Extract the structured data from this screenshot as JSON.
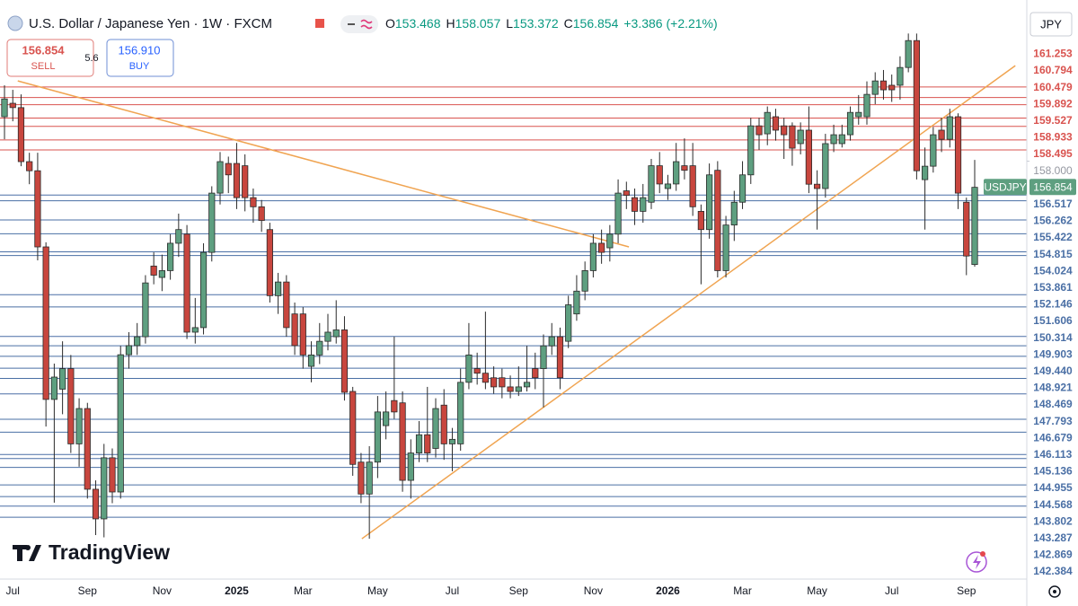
{
  "chart_data": {
    "type": "candlestick",
    "title": "U.S. Dollar / Japanese Yen · 1W · FXCM",
    "symbol": "USDJPY",
    "currency": "JPY",
    "watermark": "TradingView",
    "ohlc_prefixes": [
      "O",
      "H",
      "L",
      "C"
    ],
    "change": "+3.386 (+2.21%)",
    "trade": {
      "sell_label": "SELL",
      "buy_label": "BUY",
      "spread": "5.6",
      "buy_price": "156.910"
    },
    "up_color": "#5e9f80",
    "down_color": "#c8463e",
    "border_color": "#2a2a2a",
    "ylim": [
      139.67,
      165.07
    ],
    "yticks": [
      {
        "value": 158,
        "label": "158.000"
      }
    ],
    "categories": [
      null,
      "Jul",
      null,
      null,
      null,
      null,
      null,
      null,
      null,
      null,
      "Sep",
      null,
      null,
      null,
      null,
      null,
      null,
      null,
      null,
      "Nov",
      null,
      null,
      null,
      null,
      null,
      null,
      null,
      null,
      "2025",
      null,
      null,
      null,
      null,
      null,
      null,
      null,
      "Mar",
      null,
      null,
      null,
      null,
      null,
      null,
      null,
      null,
      "May",
      null,
      null,
      null,
      null,
      null,
      null,
      null,
      null,
      "Jul",
      null,
      null,
      null,
      null,
      null,
      null,
      null,
      "Sep",
      null,
      null,
      null,
      null,
      null,
      null,
      null,
      null,
      "Nov",
      null,
      null,
      null,
      null,
      null,
      null,
      null,
      null,
      "2026",
      null,
      null,
      null,
      null,
      null,
      null,
      null,
      null,
      "Mar",
      null,
      null,
      null,
      null,
      null,
      null,
      null,
      null,
      "May",
      null,
      null,
      null,
      null,
      null,
      null,
      null,
      null,
      "Jul",
      null,
      null,
      null,
      null,
      null,
      null,
      null,
      null,
      "Sep",
      null
    ],
    "open": [
      159.95,
      160.54,
      160.35,
      157.98,
      157.58,
      154.24,
      147.55,
      148.0,
      148.9,
      145.6,
      147.15,
      143.61,
      142.31,
      144.99,
      143.49,
      149.51,
      149.91,
      150.3,
      153.4,
      152.9,
      153.2,
      154.4,
      154.8,
      150.5,
      150.7,
      154.0,
      156.6,
      157.9,
      157.9,
      157.8,
      156.4,
      156.0,
      155.0,
      152.1,
      152.7,
      151.3,
      151.3,
      149.0,
      149.5,
      150.1,
      150.3,
      150.6,
      147.9,
      144.8,
      143.4,
      144.8,
      146.4,
      147.5,
      147.4,
      144.0,
      145.2,
      146.0,
      145.4,
      147.3,
      145.6,
      145.6,
      148.3,
      148.9,
      148.7,
      148.5,
      148.5,
      148.1,
      147.9,
      148.1,
      148.9,
      148.9,
      149.9,
      150.3,
      150.1,
      151.3,
      152.3,
      153.2,
      154.4,
      154.2,
      154.8,
      156.7,
      156.4,
      155.8,
      156.2,
      157.8,
      156.8,
      157.0,
      157.8,
      157.8,
      155.8,
      155.0,
      157.6,
      153.2,
      155.2,
      156.2,
      157.4,
      159.55,
      159.2,
      159.95,
      159.55,
      159.55,
      158.77,
      159.36,
      156.99,
      156.8,
      158.77,
      158.77,
      159.16,
      159.95,
      159.95,
      160.93,
      161.52,
      161.33,
      161.33,
      162.11,
      163.29,
      157.19,
      157.78,
      159.36,
      158.96,
      159.95,
      156.2,
      153.468
    ],
    "high": [
      161.33,
      161.13,
      160.93,
      158.37,
      158.37,
      154.44,
      149.12,
      150.1,
      149.5,
      147.6,
      147.4,
      144.0,
      145.6,
      145.4,
      149.9,
      150.5,
      150.9,
      153.0,
      154.0,
      153.9,
      154.8,
      155.7,
      155.2,
      152.0,
      154.4,
      156.9,
      158.4,
      158.2,
      158.8,
      158.3,
      156.8,
      156.3,
      155.3,
      153.1,
      153.0,
      151.8,
      151.6,
      150.1,
      150.9,
      151.3,
      151.9,
      151.2,
      148.1,
      145.2,
      145.5,
      147.7,
      147.9,
      150.3,
      147.9,
      145.8,
      146.6,
      148.1,
      147.6,
      148.0,
      146.3,
      148.9,
      150.9,
      149.6,
      151.4,
      149.0,
      148.9,
      148.6,
      149.0,
      149.9,
      149.6,
      150.4,
      150.9,
      150.7,
      152.1,
      153.0,
      153.6,
      154.8,
      155.0,
      155.2,
      157.2,
      157.1,
      156.8,
      157.0,
      158.1,
      158.4,
      157.4,
      158.8,
      159.0,
      158.8,
      156.1,
      157.9,
      158.0,
      155.6,
      156.7,
      158.0,
      159.9,
      159.9,
      160.4,
      160.3,
      159.9,
      159.7,
      159.7,
      160.4,
      157.6,
      159.2,
      159.6,
      159.6,
      160.4,
      160.9,
      161.5,
      161.9,
      162.0,
      161.8,
      162.6,
      163.6,
      163.6,
      158.6,
      159.5,
      159.9,
      160.3,
      160.1,
      156.4,
      158.057
    ],
    "low": [
      158.96,
      159.75,
      157.78,
      156.99,
      153.65,
      146.36,
      143.02,
      146.9,
      145.2,
      144.6,
      143.2,
      141.6,
      141.5,
      143.0,
      143.2,
      148.9,
      149.5,
      150.0,
      152.6,
      152.3,
      152.8,
      153.8,
      150.2,
      150.0,
      150.4,
      153.6,
      156.1,
      156.6,
      155.9,
      155.8,
      155.3,
      154.9,
      151.8,
      151.3,
      150.3,
      149.5,
      148.9,
      148.3,
      149.1,
      149.7,
      150.0,
      147.5,
      144.2,
      143.0,
      141.44,
      144.1,
      145.8,
      146.7,
      143.5,
      143.2,
      144.8,
      144.8,
      145.0,
      144.9,
      144.4,
      145.3,
      148.0,
      148.2,
      148.0,
      147.8,
      147.6,
      147.6,
      147.7,
      147.9,
      148.0,
      147.2,
      149.5,
      148.0,
      149.8,
      151.0,
      151.9,
      152.9,
      153.5,
      153.6,
      154.4,
      155.9,
      155.2,
      155.3,
      155.9,
      156.6,
      156.3,
      156.7,
      157.2,
      155.6,
      152.6,
      154.6,
      152.9,
      152.9,
      154.5,
      155.9,
      157.0,
      158.5,
      158.7,
      158.9,
      158.1,
      157.8,
      158.3,
      156.6,
      155.0,
      156.4,
      158.4,
      158.6,
      158.9,
      159.6,
      159.6,
      160.5,
      160.7,
      160.6,
      160.7,
      161.9,
      157.2,
      155.0,
      157.5,
      158.4,
      158.6,
      155.9,
      153.0,
      153.372
    ],
    "close": [
      160.73,
      160.35,
      157.98,
      157.58,
      154.24,
      147.55,
      148.53,
      148.9,
      145.6,
      147.15,
      143.61,
      142.31,
      144.99,
      143.49,
      149.51,
      149.91,
      150.3,
      152.66,
      153.0,
      153.2,
      154.4,
      155.0,
      150.5,
      150.7,
      154.0,
      156.6,
      157.98,
      157.4,
      156.4,
      156.4,
      156.0,
      155.4,
      152.1,
      152.7,
      150.7,
      149.91,
      149.5,
      149.5,
      150.1,
      150.5,
      150.6,
      147.86,
      144.7,
      143.4,
      144.8,
      147.0,
      147.0,
      147.0,
      144.0,
      145.2,
      146.0,
      145.2,
      147.15,
      145.6,
      145.8,
      148.3,
      149.5,
      148.7,
      148.3,
      148.1,
      148.1,
      147.9,
      148.1,
      148.3,
      148.5,
      149.9,
      150.3,
      148.5,
      151.7,
      152.3,
      153.2,
      154.4,
      154.0,
      154.8,
      156.6,
      156.5,
      155.8,
      156.4,
      157.8,
      157.0,
      157.0,
      157.98,
      157.6,
      156.0,
      155.0,
      157.4,
      153.2,
      155.2,
      156.2,
      157.4,
      159.55,
      159.16,
      160.14,
      159.36,
      159.16,
      158.57,
      159.36,
      156.99,
      156.8,
      158.77,
      159.16,
      159.16,
      160.14,
      160.14,
      160.93,
      161.52,
      161.13,
      161.13,
      162.11,
      163.29,
      157.58,
      157.78,
      159.16,
      158.96,
      159.95,
      156.6,
      153.84,
      156.854
    ],
    "levels": {
      "resistance": {
        "color": "#d9534f",
        "values": [
          161.253,
          160.794,
          160.479,
          159.892,
          159.527,
          158.933,
          158.495
        ]
      },
      "support": {
        "color": "#4a6fa5",
        "values": [
          156.517,
          156.262,
          155.422,
          154.815,
          154.024,
          153.861,
          152.146,
          151.606,
          150.314,
          149.903,
          {
            "value": 149.44,
            "label": "149.440"
          },
          148.921,
          148.469,
          147.793,
          146.679,
          146.113,
          145.136,
          144.955,
          144.568,
          143.802,
          143.287,
          142.869,
          142.384
        ]
      }
    },
    "trendline_color": "#f0a451",
    "trendlines": [
      {
        "x": [
          1.6,
          75.3
        ],
        "y": [
          161.52,
          154.24
        ]
      },
      {
        "x": [
          43.1,
          121.9
        ],
        "y": [
          141.44,
          162.19
        ]
      }
    ]
  }
}
